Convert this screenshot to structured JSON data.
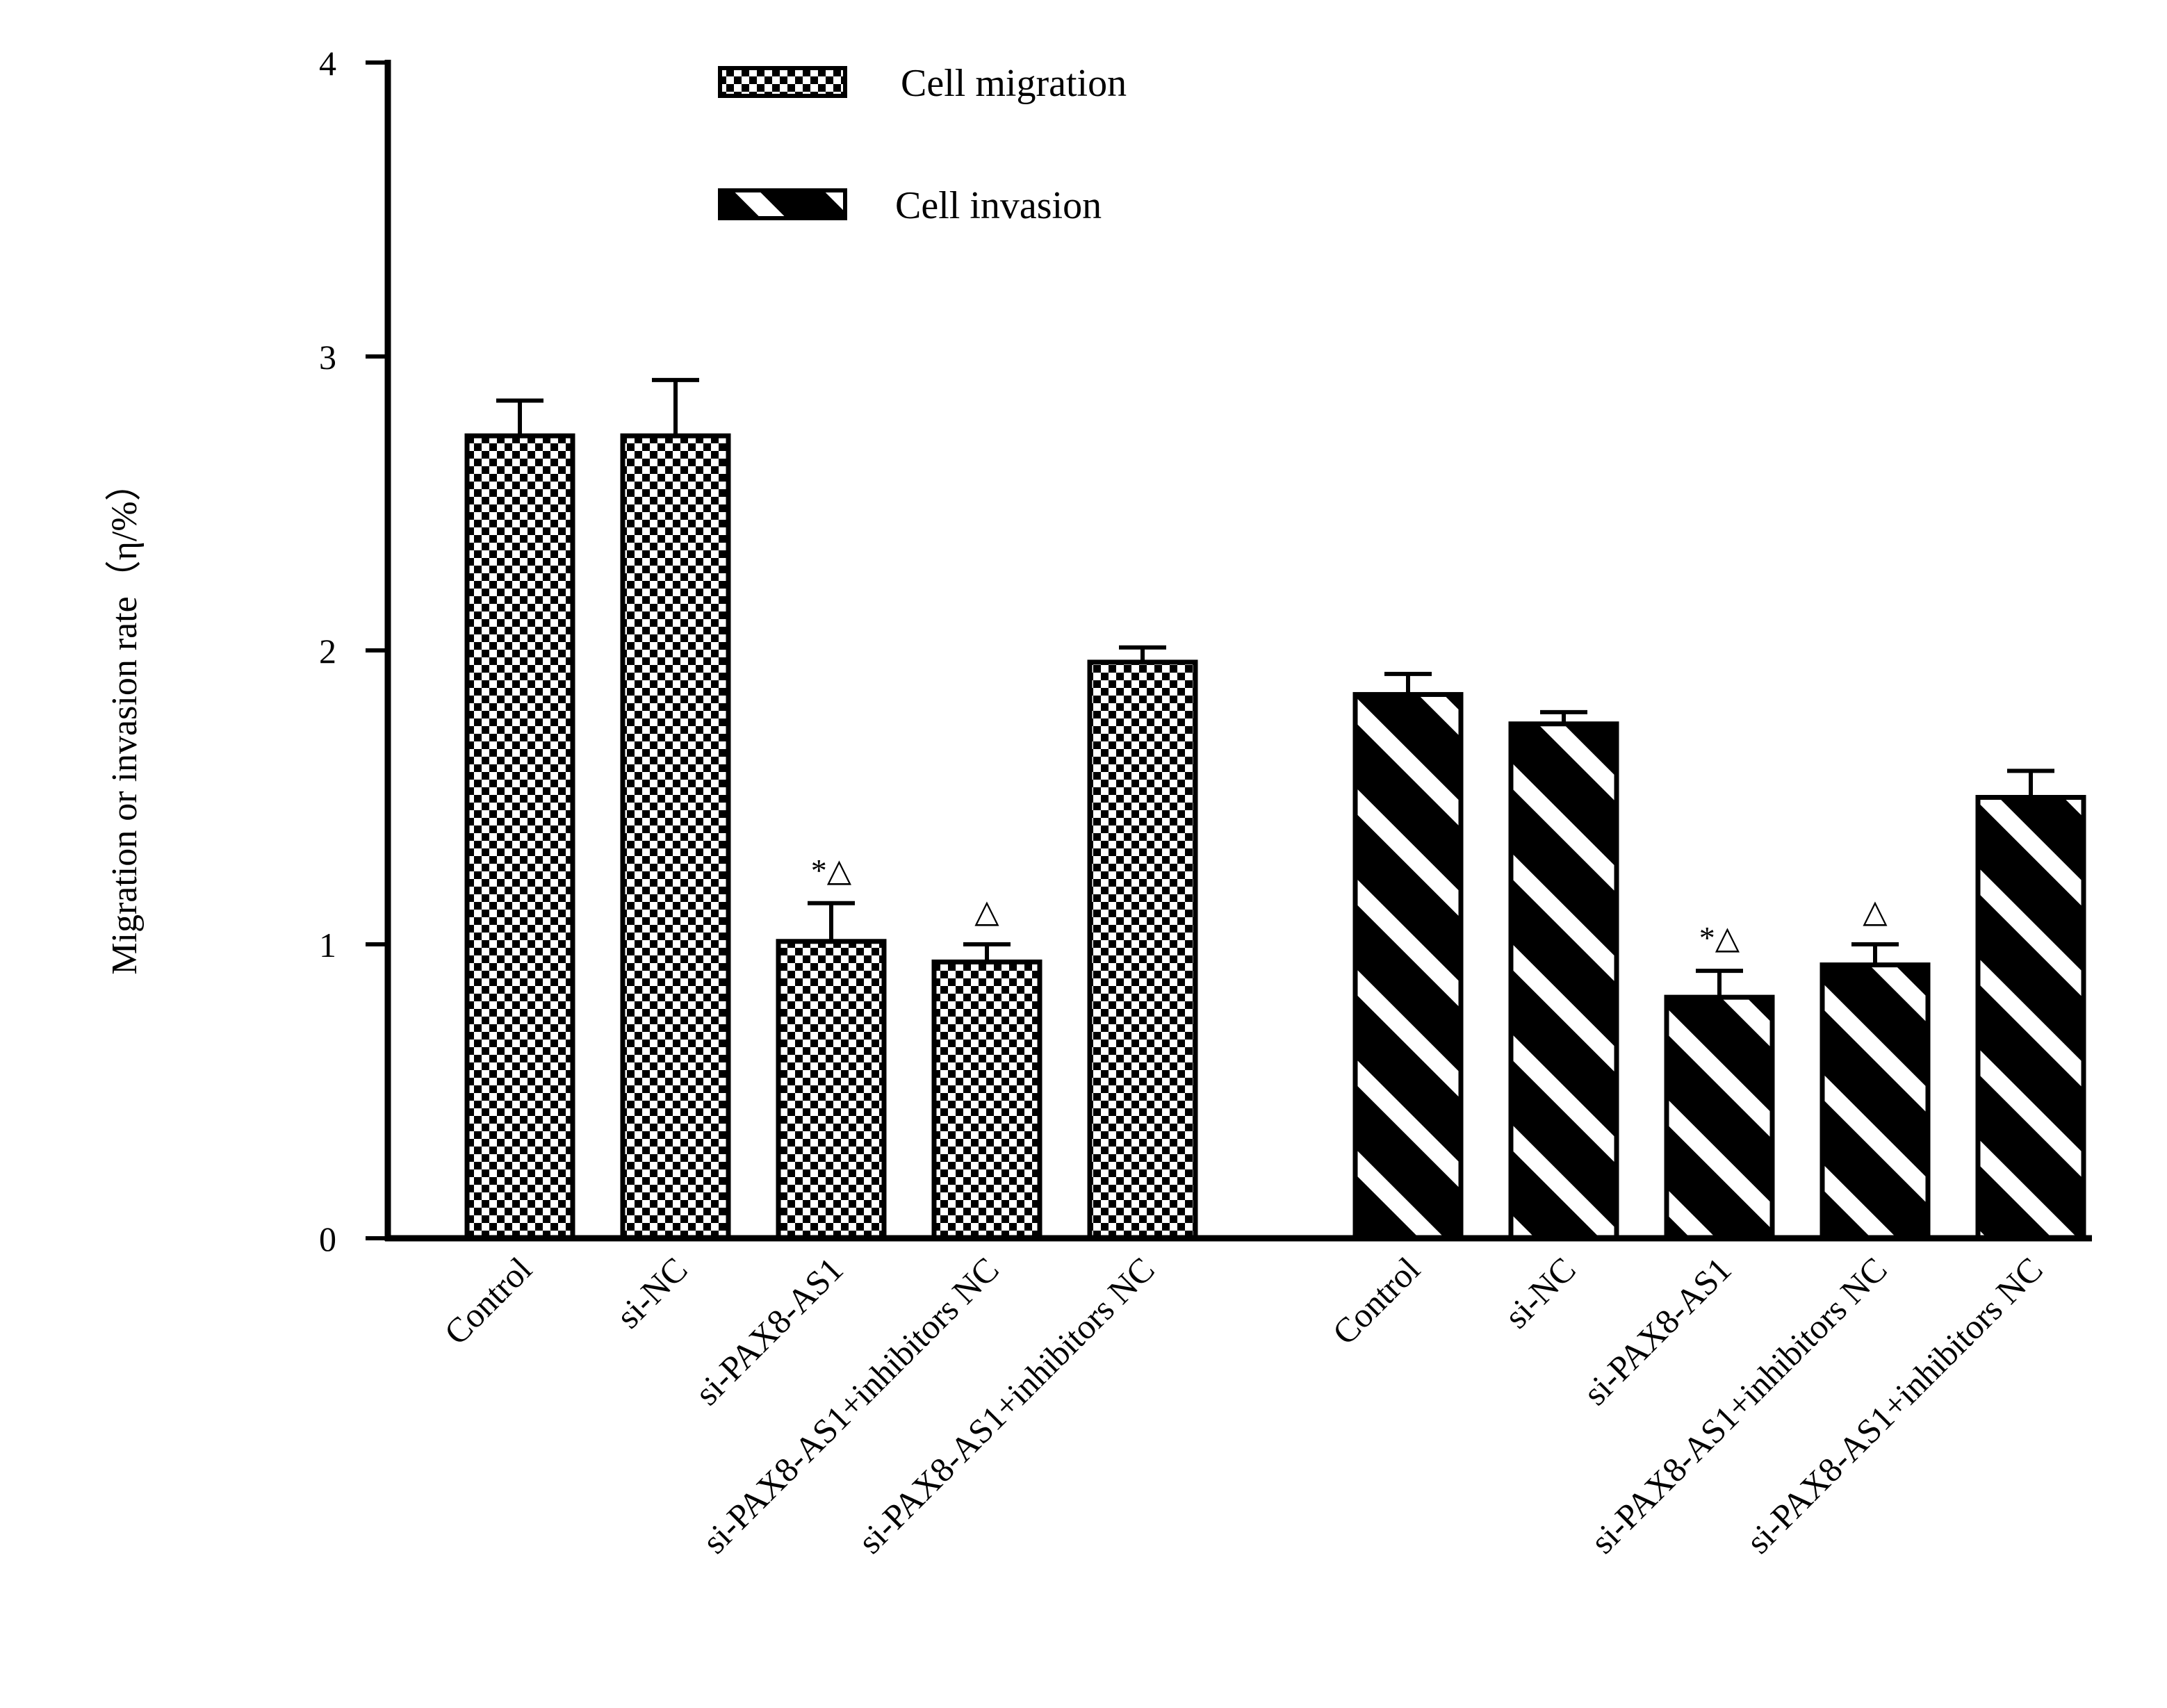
{
  "chart_data": {
    "type": "bar",
    "ylabel": "Migration or invasion rate（η/%）",
    "ylim": [
      0,
      4
    ],
    "yticks": [
      "0",
      "1",
      "2",
      "3",
      "4"
    ],
    "categories": [
      "Control",
      "si-NC",
      "si-PAX8-AS1",
      "si-PAX8-AS1+inhibitors NC",
      "si-PAX8-AS1+inhibitors NC"
    ],
    "legend_placement": "top-center",
    "series": [
      {
        "name": "Cell migration",
        "pattern": "checkerboard",
        "values": [
          2.73,
          2.73,
          1.01,
          0.94,
          1.96
        ],
        "errors": [
          0.12,
          0.19,
          0.13,
          0.06,
          0.05
        ],
        "annotations": [
          "",
          "",
          "*△",
          "△",
          ""
        ]
      },
      {
        "name": "Cell invasion",
        "pattern": "diagonal-stripes",
        "values": [
          1.85,
          1.75,
          0.82,
          0.93,
          1.5
        ],
        "errors": [
          0.07,
          0.04,
          0.09,
          0.07,
          0.09
        ],
        "annotations": [
          "",
          "",
          "*△",
          "△",
          ""
        ]
      }
    ],
    "colors": {
      "bar_fill": "#000000",
      "bar_light": "#ffffff",
      "axis": "#000000"
    }
  }
}
